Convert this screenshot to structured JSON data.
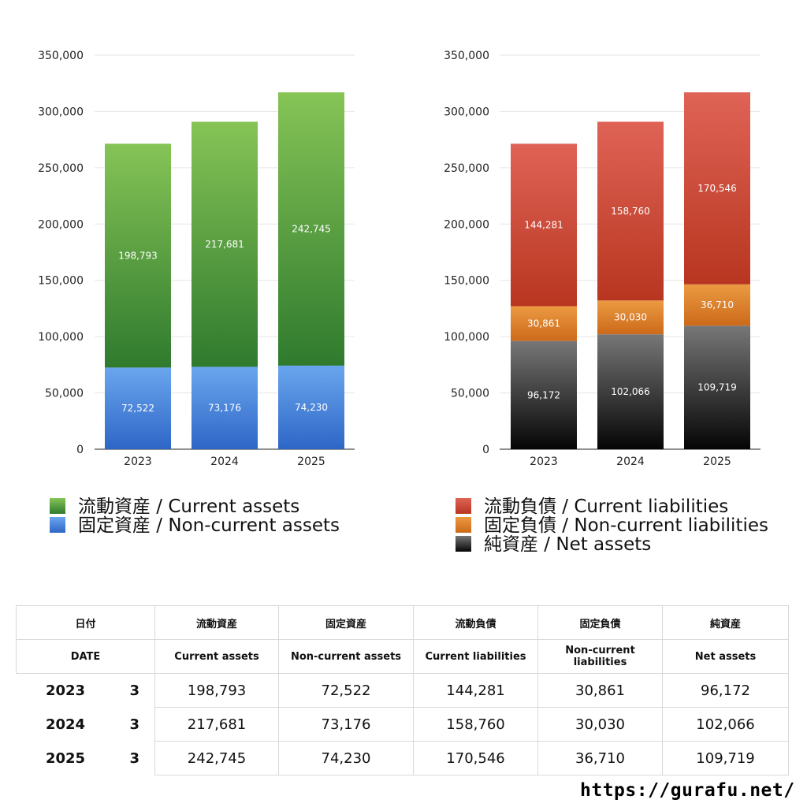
{
  "chart_data": [
    {
      "type": "bar",
      "stacked": true,
      "categories": [
        "2023",
        "2024",
        "2025"
      ],
      "y_ticks": [
        "0",
        "50,000",
        "100,000",
        "150,000",
        "200,000",
        "250,000",
        "300,000",
        "350,000"
      ],
      "ylim": [
        0,
        350000
      ],
      "grid": true,
      "legend_position": "bottom-left",
      "series": [
        {
          "name": "固定資産 / Non-current assets",
          "values": [
            72522,
            73176,
            74230
          ],
          "labels": [
            "72,522",
            "73,176",
            "74,230"
          ],
          "color_top": "#6aa6ee",
          "color_bottom": "#2e66c6"
        },
        {
          "name": "流動資産 / Current assets",
          "values": [
            198793,
            217681,
            242745
          ],
          "labels": [
            "198,793",
            "217,681",
            "242,745"
          ],
          "color_top": "#86c456",
          "color_bottom": "#2f7a2e"
        }
      ],
      "legend_order": [
        1,
        0
      ]
    },
    {
      "type": "bar",
      "stacked": true,
      "categories": [
        "2023",
        "2024",
        "2025"
      ],
      "y_ticks": [
        "0",
        "50,000",
        "100,000",
        "150,000",
        "200,000",
        "250,000",
        "300,000",
        "350,000"
      ],
      "ylim": [
        0,
        350000
      ],
      "grid": true,
      "legend_position": "bottom-left",
      "series": [
        {
          "name": "純資産 / Net assets",
          "values": [
            96172,
            102066,
            109719
          ],
          "labels": [
            "96,172",
            "102,066",
            "109,719"
          ],
          "color_top": "#777777",
          "color_bottom": "#050505"
        },
        {
          "name": "固定負債 / Non-current liabilities",
          "values": [
            30861,
            30030,
            36710
          ],
          "labels": [
            "30,861",
            "30,030",
            "36,710"
          ],
          "color_top": "#eb9a42",
          "color_bottom": "#cc6a1a"
        },
        {
          "name": "流動負債 / Current liabilities",
          "values": [
            144281,
            158760,
            170546
          ],
          "labels": [
            "144,281",
            "158,760",
            "170,546"
          ],
          "color_top": "#df6356",
          "color_bottom": "#b83620"
        }
      ],
      "legend_order": [
        2,
        1,
        0
      ]
    }
  ],
  "table": {
    "header_jp": [
      "日付",
      "流動資産",
      "固定資産",
      "流動負債",
      "固定負債",
      "純資産"
    ],
    "header_en": [
      "DATE",
      "Current assets",
      "Non-current assets",
      "Current liabilities",
      "Non-current liabilities",
      "Net assets"
    ],
    "rows": [
      {
        "year": "2023",
        "month": "3",
        "values": [
          "198,793",
          "72,522",
          "144,281",
          "30,861",
          "96,172"
        ]
      },
      {
        "year": "2024",
        "month": "3",
        "values": [
          "217,681",
          "73,176",
          "158,760",
          "30,030",
          "102,066"
        ]
      },
      {
        "year": "2025",
        "month": "3",
        "values": [
          "242,745",
          "74,230",
          "170,546",
          "36,710",
          "109,719"
        ]
      }
    ]
  },
  "watermark": "https://gurafu.net/"
}
